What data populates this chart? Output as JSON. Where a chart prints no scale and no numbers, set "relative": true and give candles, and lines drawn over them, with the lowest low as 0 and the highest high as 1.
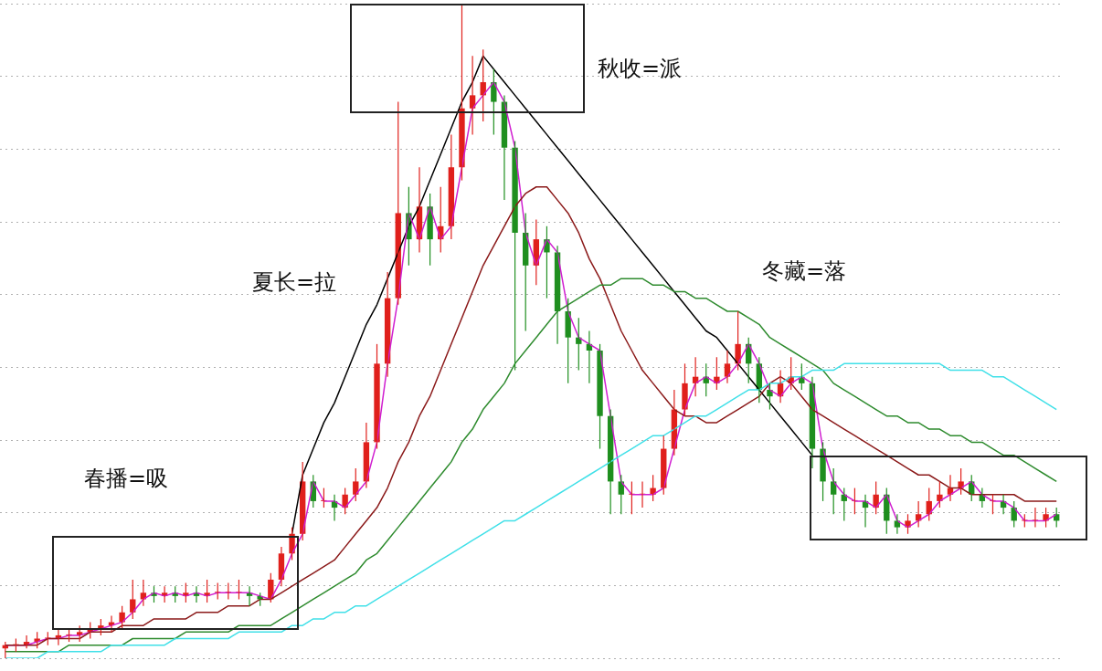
{
  "chart_data": {
    "type": "candlestick",
    "relative": true,
    "grid": "y",
    "marker": "none",
    "annotations": [
      "春播=吸",
      "夏长=拉",
      "秋收=派",
      "冬藏=落"
    ],
    "categories": [
      null,
      null,
      null,
      null,
      null,
      null,
      null,
      null,
      null,
      null,
      null,
      null,
      null,
      null,
      null,
      null,
      null,
      null,
      null,
      null,
      null,
      null,
      null,
      null,
      null,
      null,
      null,
      null,
      null,
      null,
      null,
      null,
      null,
      null,
      null,
      null,
      null,
      null,
      null,
      null,
      null,
      null,
      null,
      null,
      null,
      null,
      null,
      null,
      null,
      null,
      null,
      null,
      null,
      null,
      null,
      null,
      null,
      null,
      null,
      null,
      null,
      null,
      null,
      null,
      null,
      null,
      null,
      null,
      null,
      null,
      null,
      null,
      null,
      null,
      null,
      null,
      null,
      null,
      null,
      null,
      null,
      null,
      null,
      null,
      null,
      null,
      null,
      null,
      null,
      null,
      null,
      null,
      null,
      null,
      null,
      null,
      null,
      null,
      null,
      null
    ],
    "series": [
      {
        "type": "line",
        "color": "#40e0e8",
        "values": [
          0,
          0,
          0,
          0,
          0.01,
          0.01,
          0.01,
          0.01,
          0.01,
          0.01,
          0.02,
          0.02,
          0.02,
          0.02,
          0.02,
          0.02,
          0.03,
          0.03,
          0.03,
          0.03,
          0.03,
          0.03,
          0.04,
          0.04,
          0.04,
          0.04,
          0.04,
          0.05,
          0.05,
          0.06,
          0.06,
          0.07,
          0.07,
          0.08,
          0.08,
          0.09,
          0.1,
          0.11,
          0.12,
          0.13,
          0.14,
          0.15,
          0.16,
          0.17,
          0.18,
          0.19,
          0.2,
          0.21,
          0.21,
          0.22,
          0.23,
          0.24,
          0.25,
          0.26,
          0.27,
          0.28,
          0.29,
          0.3,
          0.31,
          0.32,
          0.33,
          0.34,
          0.34,
          0.35,
          0.36,
          0.37,
          0.37,
          0.38,
          0.39,
          0.4,
          0.41,
          0.41,
          0.42,
          0.42,
          0.43,
          0.43,
          0.44,
          0.44,
          0.44,
          0.45,
          0.45,
          0.45,
          0.45,
          0.45,
          0.45,
          0.45,
          0.45,
          0.45,
          0.45,
          0.44,
          0.44,
          0.44,
          0.44,
          0.43,
          0.43,
          0.42,
          0.41,
          0.4,
          0.39,
          0.38
        ]
      },
      {
        "type": "line",
        "color": "#2e8b2e",
        "values": [
          0.01,
          0.01,
          0.01,
          0.01,
          0.01,
          0.01,
          0.02,
          0.02,
          0.02,
          0.02,
          0.02,
          0.02,
          0.03,
          0.03,
          0.03,
          0.03,
          0.03,
          0.04,
          0.04,
          0.04,
          0.04,
          0.04,
          0.05,
          0.05,
          0.05,
          0.05,
          0.06,
          0.07,
          0.08,
          0.09,
          0.1,
          0.11,
          0.12,
          0.13,
          0.15,
          0.16,
          0.18,
          0.2,
          0.22,
          0.24,
          0.26,
          0.28,
          0.3,
          0.33,
          0.35,
          0.38,
          0.4,
          0.42,
          0.45,
          0.47,
          0.49,
          0.51,
          0.53,
          0.54,
          0.55,
          0.56,
          0.57,
          0.57,
          0.58,
          0.58,
          0.58,
          0.57,
          0.57,
          0.56,
          0.56,
          0.55,
          0.55,
          0.54,
          0.53,
          0.53,
          0.52,
          0.51,
          0.49,
          0.48,
          0.47,
          0.46,
          0.45,
          0.44,
          0.42,
          0.41,
          0.4,
          0.39,
          0.38,
          0.37,
          0.37,
          0.36,
          0.36,
          0.35,
          0.35,
          0.34,
          0.34,
          0.33,
          0.33,
          0.32,
          0.31,
          0.31,
          0.3,
          0.29,
          0.28,
          0.27
        ]
      },
      {
        "type": "line",
        "color": "#8b1a1a",
        "values": [
          0.02,
          0.02,
          0.02,
          0.02,
          0.03,
          0.03,
          0.03,
          0.03,
          0.04,
          0.04,
          0.04,
          0.05,
          0.05,
          0.05,
          0.06,
          0.06,
          0.06,
          0.06,
          0.07,
          0.07,
          0.07,
          0.08,
          0.08,
          0.08,
          0.09,
          0.09,
          0.1,
          0.11,
          0.12,
          0.13,
          0.14,
          0.15,
          0.17,
          0.19,
          0.21,
          0.23,
          0.26,
          0.3,
          0.33,
          0.37,
          0.4,
          0.44,
          0.48,
          0.52,
          0.56,
          0.6,
          0.63,
          0.66,
          0.69,
          0.71,
          0.72,
          0.72,
          0.7,
          0.68,
          0.65,
          0.61,
          0.58,
          0.54,
          0.5,
          0.47,
          0.44,
          0.42,
          0.4,
          0.38,
          0.37,
          0.37,
          0.36,
          0.36,
          0.37,
          0.38,
          0.39,
          0.4,
          0.42,
          0.43,
          0.42,
          0.4,
          0.38,
          0.37,
          0.36,
          0.35,
          0.34,
          0.33,
          0.32,
          0.31,
          0.3,
          0.29,
          0.28,
          0.28,
          0.27,
          0.26,
          0.26,
          0.25,
          0.25,
          0.25,
          0.25,
          0.25,
          0.24,
          0.24,
          0.24,
          0.24
        ]
      },
      {
        "type": "line",
        "color": "#d020d0",
        "values": [
          0.02,
          0.02,
          0.02,
          0.025,
          0.03,
          0.03,
          0.035,
          0.035,
          0.04,
          0.045,
          0.05,
          0.055,
          0.07,
          0.09,
          0.1,
          0.095,
          0.1,
          0.095,
          0.1,
          0.095,
          0.1,
          0.1,
          0.1,
          0.1,
          0.095,
          0.09,
          0.12,
          0.16,
          0.19,
          0.27,
          0.24,
          0.24,
          0.23,
          0.25,
          0.27,
          0.33,
          0.45,
          0.55,
          0.68,
          0.64,
          0.69,
          0.64,
          0.66,
          0.75,
          0.84,
          0.86,
          0.88,
          0.85,
          0.78,
          0.65,
          0.6,
          0.64,
          0.62,
          0.53,
          0.49,
          0.48,
          0.47,
          0.37,
          0.27,
          0.25,
          0.25,
          0.25,
          0.26,
          0.32,
          0.38,
          0.42,
          0.43,
          0.42,
          0.43,
          0.45,
          0.48,
          0.45,
          0.41,
          0.4,
          0.42,
          0.43,
          0.42,
          0.32,
          0.27,
          0.25,
          0.24,
          0.24,
          0.23,
          0.25,
          0.21,
          0.2,
          0.21,
          0.22,
          0.24,
          0.25,
          0.26,
          0.27,
          0.25,
          0.24,
          0.24,
          0.23,
          0.21,
          0.21,
          0.21,
          0.22
        ]
      },
      {
        "type": "line",
        "color": "#000000",
        "values": [
          null,
          null,
          null,
          null,
          null,
          null,
          null,
          null,
          null,
          null,
          null,
          null,
          null,
          null,
          null,
          null,
          null,
          null,
          null,
          null,
          null,
          null,
          null,
          null,
          null,
          null,
          null,
          0.19,
          0.28,
          0.32,
          0.36,
          0.39,
          0.43,
          0.47,
          0.51,
          0.54,
          0.58,
          0.62,
          0.66,
          0.69,
          0.73,
          0.77,
          0.81,
          0.85,
          0.88,
          0.92,
          0.9,
          0.88,
          0.86,
          0.84,
          0.82,
          0.8,
          0.78,
          0.76,
          0.74,
          0.72,
          0.7,
          0.68,
          0.66,
          0.64,
          0.62,
          0.6,
          0.58,
          0.56,
          0.54,
          0.52,
          0.5,
          0.49,
          0.47,
          0.45,
          0.43,
          0.41,
          0.39,
          0.37,
          0.35,
          0.33,
          0.31,
          null,
          null,
          null,
          null,
          null,
          null,
          null,
          null,
          null,
          null,
          null,
          null,
          null,
          null,
          null,
          null,
          null,
          null,
          null,
          null,
          null,
          null,
          null
        ]
      },
      {
        "colors": [
          "#e0201c",
          "#e0201c",
          "#e0201c",
          "#e0201c",
          "#e0201c",
          "#e0201c",
          "#e0201c",
          "#e0201c",
          "#e0201c",
          "#e0201c",
          "#e0201c",
          "#e0201c",
          "#e0201c",
          "#e0201c",
          "#1f8f1f",
          "#e0201c",
          "#1f8f1f",
          "#e0201c",
          "#1f8f1f",
          "#e0201c",
          "#e0201c",
          "#e0201c",
          "#e0201c",
          "#1f8f1f",
          "#1f8f1f",
          "#e0201c",
          "#e0201c",
          "#e0201c",
          "#e0201c",
          "#1f8f1f",
          "#e0201c",
          "#1f8f1f",
          "#e0201c",
          "#e0201c",
          "#e0201c",
          "#e0201c",
          "#e0201c",
          "#e0201c",
          "#1f8f1f",
          "#e0201c",
          "#1f8f1f",
          "#e0201c",
          "#e0201c",
          "#e0201c",
          "#e0201c",
          "#e0201c",
          "#1f8f1f",
          "#1f8f1f",
          "#1f8f1f",
          "#1f8f1f",
          "#e0201c",
          "#1f8f1f",
          "#1f8f1f",
          "#1f8f1f",
          "#1f8f1f",
          "#1f8f1f",
          "#1f8f1f",
          "#1f8f1f",
          "#1f8f1f",
          "#e0201c",
          "#e0201c",
          "#e0201c",
          "#e0201c",
          "#e0201c",
          "#e0201c",
          "#e0201c",
          "#1f8f1f",
          "#e0201c",
          "#e0201c",
          "#e0201c",
          "#1f8f1f",
          "#1f8f1f",
          "#1f8f1f",
          "#e0201c",
          "#e0201c",
          "#1f8f1f",
          "#1f8f1f",
          "#1f8f1f",
          "#1f8f1f",
          "#1f8f1f",
          "#e0201c",
          "#1f8f1f",
          "#e0201c",
          "#1f8f1f",
          "#1f8f1f",
          "#e0201c",
          "#e0201c",
          "#e0201c",
          "#e0201c",
          "#e0201c",
          "#e0201c",
          "#1f8f1f",
          "#1f8f1f",
          "#e0201c",
          "#1f8f1f",
          "#1f8f1f",
          "#e0201c",
          "#e0201c",
          "#e0201c",
          "#1f8f1f"
        ],
        "ohlc": [
          [
            0.015,
            0.025,
            0,
            0.02
          ],
          [
            0.02,
            0.03,
            0.01,
            0.02
          ],
          [
            0.02,
            0.035,
            0.015,
            0.025
          ],
          [
            0.025,
            0.04,
            0.015,
            0.03
          ],
          [
            0.03,
            0.04,
            0.02,
            0.03
          ],
          [
            0.03,
            0.045,
            0.02,
            0.035
          ],
          [
            0.035,
            0.045,
            0.025,
            0.035
          ],
          [
            0.035,
            0.05,
            0.025,
            0.04
          ],
          [
            0.04,
            0.055,
            0.03,
            0.045
          ],
          [
            0.045,
            0.06,
            0.035,
            0.05
          ],
          [
            0.05,
            0.065,
            0.04,
            0.055
          ],
          [
            0.055,
            0.08,
            0.045,
            0.07
          ],
          [
            0.07,
            0.12,
            0.06,
            0.09
          ],
          [
            0.09,
            0.12,
            0.08,
            0.1
          ],
          [
            0.1,
            0.11,
            0.085,
            0.095
          ],
          [
            0.095,
            0.11,
            0.085,
            0.1
          ],
          [
            0.1,
            0.11,
            0.085,
            0.095
          ],
          [
            0.095,
            0.115,
            0.085,
            0.1
          ],
          [
            0.1,
            0.11,
            0.085,
            0.095
          ],
          [
            0.095,
            0.12,
            0.085,
            0.1
          ],
          [
            0.1,
            0.115,
            0.09,
            0.1
          ],
          [
            0.1,
            0.115,
            0.09,
            0.1
          ],
          [
            0.1,
            0.12,
            0.09,
            0.1
          ],
          [
            0.1,
            0.11,
            0.08,
            0.095
          ],
          [
            0.095,
            0.1,
            0.08,
            0.09
          ],
          [
            0.09,
            0.13,
            0.085,
            0.12
          ],
          [
            0.12,
            0.17,
            0.11,
            0.16
          ],
          [
            0.16,
            0.2,
            0.15,
            0.19
          ],
          [
            0.19,
            0.3,
            0.18,
            0.27
          ],
          [
            0.27,
            0.28,
            0.23,
            0.24
          ],
          [
            0.24,
            0.26,
            0.23,
            0.24
          ],
          [
            0.24,
            0.25,
            0.21,
            0.23
          ],
          [
            0.23,
            0.26,
            0.22,
            0.25
          ],
          [
            0.25,
            0.29,
            0.24,
            0.27
          ],
          [
            0.27,
            0.36,
            0.26,
            0.33
          ],
          [
            0.33,
            0.48,
            0.32,
            0.45
          ],
          [
            0.45,
            0.59,
            0.43,
            0.55
          ],
          [
            0.55,
            0.85,
            0.54,
            0.68
          ],
          [
            0.68,
            0.72,
            0.6,
            0.64
          ],
          [
            0.64,
            0.75,
            0.62,
            0.69
          ],
          [
            0.69,
            0.71,
            0.6,
            0.64
          ],
          [
            0.64,
            0.72,
            0.62,
            0.66
          ],
          [
            0.66,
            0.8,
            0.64,
            0.75
          ],
          [
            0.75,
            1.0,
            0.73,
            0.84
          ],
          [
            0.84,
            0.92,
            0.8,
            0.86
          ],
          [
            0.86,
            0.93,
            0.82,
            0.88
          ],
          [
            0.88,
            0.9,
            0.8,
            0.85
          ],
          [
            0.85,
            0.86,
            0.7,
            0.78
          ],
          [
            0.78,
            0.79,
            0.44,
            0.65
          ],
          [
            0.65,
            0.68,
            0.5,
            0.6
          ],
          [
            0.6,
            0.67,
            0.57,
            0.64
          ],
          [
            0.64,
            0.66,
            0.55,
            0.62
          ],
          [
            0.62,
            0.63,
            0.48,
            0.53
          ],
          [
            0.53,
            0.55,
            0.42,
            0.49
          ],
          [
            0.49,
            0.52,
            0.44,
            0.48
          ],
          [
            0.48,
            0.5,
            0.42,
            0.47
          ],
          [
            0.47,
            0.48,
            0.32,
            0.37
          ],
          [
            0.37,
            0.38,
            0.22,
            0.27
          ],
          [
            0.27,
            0.28,
            0.22,
            0.25
          ],
          [
            0.25,
            0.27,
            0.22,
            0.25
          ],
          [
            0.25,
            0.27,
            0.23,
            0.25
          ],
          [
            0.25,
            0.28,
            0.24,
            0.26
          ],
          [
            0.26,
            0.34,
            0.25,
            0.32
          ],
          [
            0.32,
            0.41,
            0.31,
            0.38
          ],
          [
            0.38,
            0.45,
            0.37,
            0.42
          ],
          [
            0.42,
            0.46,
            0.4,
            0.43
          ],
          [
            0.43,
            0.45,
            0.4,
            0.42
          ],
          [
            0.42,
            0.46,
            0.41,
            0.43
          ],
          [
            0.43,
            0.47,
            0.42,
            0.45
          ],
          [
            0.45,
            0.53,
            0.44,
            0.48
          ],
          [
            0.48,
            0.49,
            0.42,
            0.45
          ],
          [
            0.45,
            0.46,
            0.39,
            0.41
          ],
          [
            0.41,
            0.42,
            0.38,
            0.4
          ],
          [
            0.4,
            0.44,
            0.39,
            0.42
          ],
          [
            0.42,
            0.46,
            0.41,
            0.43
          ],
          [
            0.43,
            0.45,
            0.41,
            0.42
          ],
          [
            0.42,
            0.43,
            0.29,
            0.32
          ],
          [
            0.32,
            0.33,
            0.24,
            0.27
          ],
          [
            0.27,
            0.29,
            0.22,
            0.25
          ],
          [
            0.25,
            0.26,
            0.21,
            0.24
          ],
          [
            0.24,
            0.26,
            0.22,
            0.24
          ],
          [
            0.24,
            0.25,
            0.2,
            0.23
          ],
          [
            0.23,
            0.27,
            0.22,
            0.25
          ],
          [
            0.25,
            0.26,
            0.19,
            0.21
          ],
          [
            0.21,
            0.22,
            0.19,
            0.2
          ],
          [
            0.2,
            0.22,
            0.19,
            0.21
          ],
          [
            0.21,
            0.24,
            0.2,
            0.22
          ],
          [
            0.22,
            0.26,
            0.21,
            0.24
          ],
          [
            0.24,
            0.27,
            0.23,
            0.25
          ],
          [
            0.25,
            0.28,
            0.24,
            0.26
          ],
          [
            0.26,
            0.29,
            0.25,
            0.27
          ],
          [
            0.27,
            0.28,
            0.24,
            0.25
          ],
          [
            0.25,
            0.26,
            0.23,
            0.24
          ],
          [
            0.24,
            0.25,
            0.22,
            0.24
          ],
          [
            0.24,
            0.25,
            0.22,
            0.23
          ],
          [
            0.23,
            0.24,
            0.2,
            0.21
          ],
          [
            0.21,
            0.22,
            0.2,
            0.21
          ],
          [
            0.21,
            0.23,
            0.2,
            0.21
          ],
          [
            0.21,
            0.23,
            0.2,
            0.22
          ],
          [
            0.22,
            0.23,
            0.2,
            0.21
          ]
        ]
      }
    ]
  }
}
